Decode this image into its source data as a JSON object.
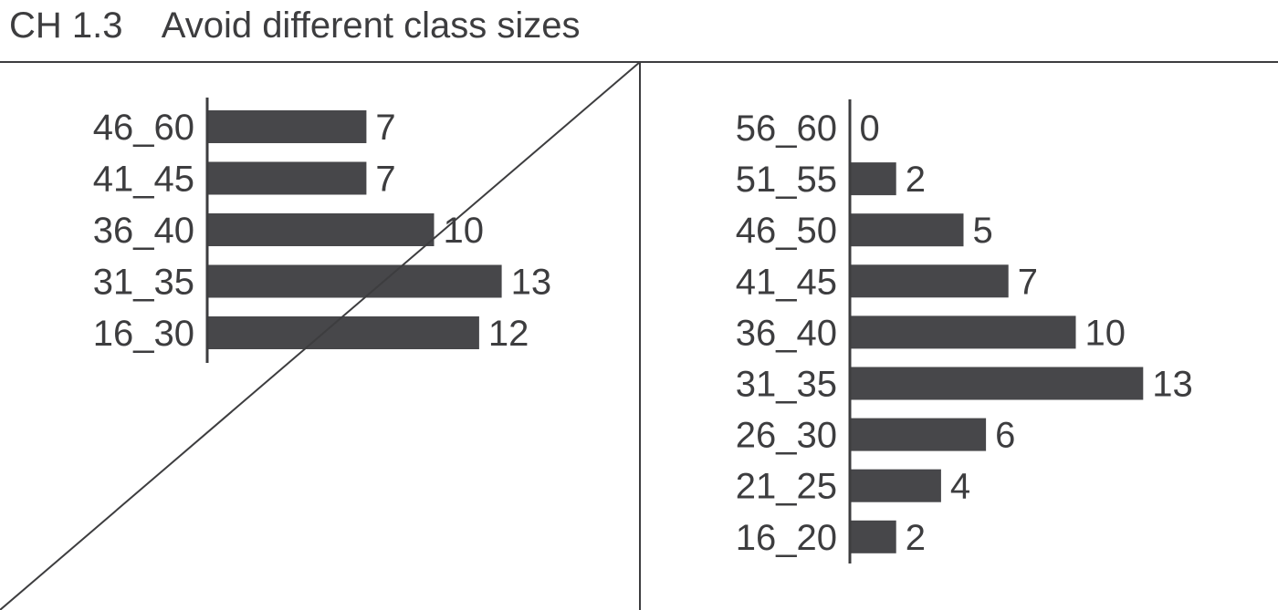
{
  "title": "CH 1.3    Avoid different class sizes",
  "colors": {
    "bar": "#47474a",
    "text": "#3d3d3f",
    "rule": "#3d3d3f",
    "background": "#ffffff"
  },
  "chart_data": [
    {
      "type": "bar",
      "orientation": "horizontal",
      "crossed_out": true,
      "categories": [
        "46_60",
        "41_45",
        "36_40",
        "31_35",
        "16_30"
      ],
      "values": [
        7,
        7,
        10,
        13,
        12
      ],
      "data_labels": [
        "7",
        "7",
        "10",
        "13",
        "12"
      ],
      "xlabel": "",
      "ylabel": "",
      "grid": false
    },
    {
      "type": "bar",
      "orientation": "horizontal",
      "crossed_out": false,
      "categories": [
        "56_60",
        "51_55",
        "46_50",
        "41_45",
        "36_40",
        "31_35",
        "26_30",
        "21_25",
        "16_20"
      ],
      "values": [
        0,
        2,
        5,
        7,
        10,
        13,
        6,
        4,
        2
      ],
      "data_labels": [
        "0",
        "2",
        "5",
        "7",
        "10",
        "13",
        "6",
        "4",
        "2"
      ],
      "xlabel": "",
      "ylabel": "",
      "grid": false
    }
  ]
}
